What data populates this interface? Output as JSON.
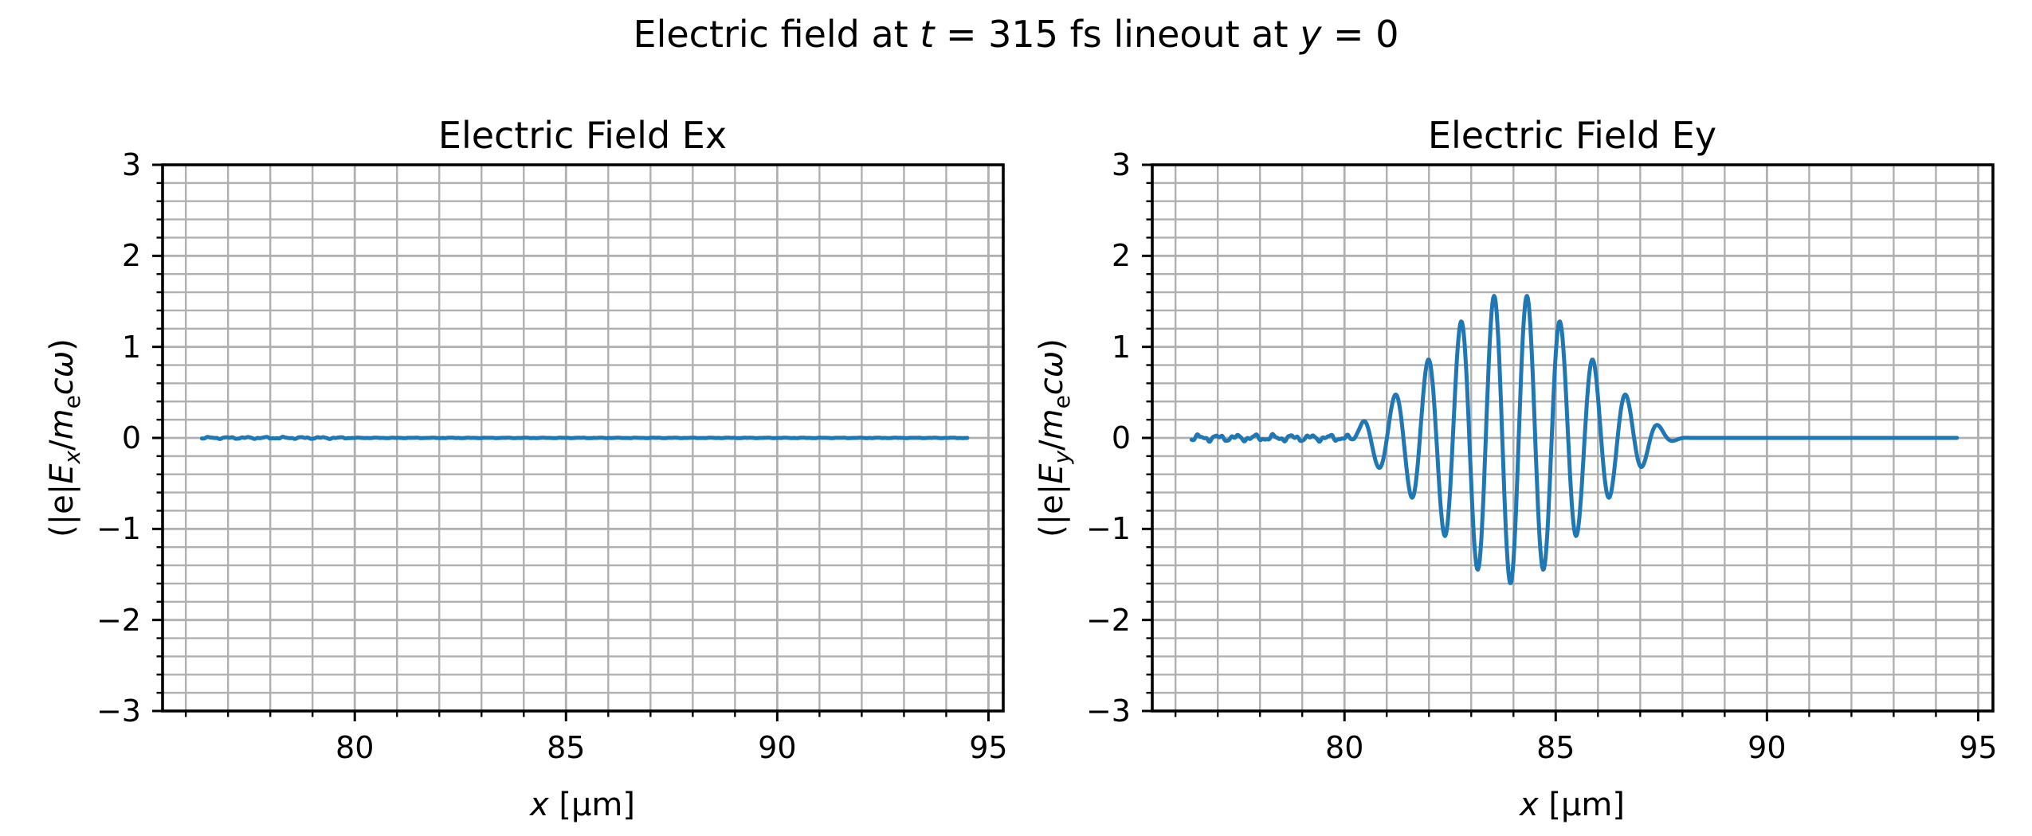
{
  "figure": {
    "suptitle": "Electric field at t = 315 fs lineout at y = 0",
    "suptitle_segments": [
      {
        "t": "Electric field at "
      },
      {
        "t": "t",
        "italic": true
      },
      {
        "t": " = 315 fs lineout at "
      },
      {
        "t": "y",
        "italic": true
      },
      {
        "t": " = 0"
      }
    ],
    "background": "#ffffff",
    "text_color": "#000000",
    "spine_color": "#000000"
  },
  "chart_data": [
    {
      "type": "line",
      "title": "Electric Field Ex",
      "xlabel": "x [μm]",
      "xlabel_segments": [
        {
          "t": "x",
          "italic": true
        },
        {
          "t": " [μm]"
        }
      ],
      "ylabel": "(|e|E_x/m_e cω)",
      "ylabel_segments": [
        {
          "t": "(|e|"
        },
        {
          "t": "E",
          "italic": true
        },
        {
          "t": "x",
          "italic": true,
          "sub": true
        },
        {
          "t": "/"
        },
        {
          "t": "m",
          "italic": true
        },
        {
          "t": "e",
          "sub": true
        },
        {
          "t": "c",
          "italic": true
        },
        {
          "t": "ω",
          "italic": true
        },
        {
          "t": ")"
        }
      ],
      "xlim": [
        75.45,
        95.35
      ],
      "ylim": [
        -3,
        3
      ],
      "xticks": {
        "values": [
          80,
          85,
          90,
          95
        ],
        "labels": [
          "80",
          "85",
          "90",
          "95"
        ]
      },
      "yticks": {
        "values": [
          3,
          2,
          1,
          0,
          -1,
          -2,
          -3
        ],
        "labels": [
          "3",
          "2",
          "1",
          "0",
          "−1",
          "−2",
          "−3"
        ]
      },
      "minor_x_step": 1,
      "minor_y_step": 0.2,
      "grid": "both",
      "grid_color": "#b0b0b0",
      "line_color": "#1f77b4",
      "data_x_range": [
        76.38,
        94.5
      ],
      "series_model": {
        "type": "flat_with_noise",
        "baseline": 0,
        "noise_amp": 0.013,
        "noise_region": [
          76.38,
          79.8
        ],
        "residual_noise_amp": 0.003
      },
      "summary": "Ex ≈ 0 across the entire lineout (only tiny numerical noise near x ≈ 76.5–80 μm)"
    },
    {
      "type": "line",
      "title": "Electric Field Ey",
      "xlabel": "x [μm]",
      "xlabel_segments": [
        {
          "t": "x",
          "italic": true
        },
        {
          "t": " [μm]"
        }
      ],
      "ylabel": "(|e|E_y/m_e cω)",
      "ylabel_segments": [
        {
          "t": "(|e|"
        },
        {
          "t": "E",
          "italic": true
        },
        {
          "t": "y",
          "italic": true,
          "sub": true
        },
        {
          "t": "/"
        },
        {
          "t": "m",
          "italic": true
        },
        {
          "t": "e",
          "sub": true
        },
        {
          "t": "c",
          "italic": true
        },
        {
          "t": "ω",
          "italic": true
        },
        {
          "t": ")"
        }
      ],
      "xlim": [
        75.45,
        95.35
      ],
      "ylim": [
        -3,
        3
      ],
      "xticks": {
        "values": [
          80,
          85,
          90,
          95
        ],
        "labels": [
          "80",
          "85",
          "90",
          "95"
        ]
      },
      "yticks": {
        "values": [
          3,
          2,
          1,
          0,
          -1,
          -2,
          -3
        ],
        "labels": [
          "3",
          "2",
          "1",
          "0",
          "−1",
          "−2",
          "−3"
        ]
      },
      "minor_x_step": 1,
      "minor_y_step": 0.2,
      "grid": "both",
      "grid_color": "#b0b0b0",
      "line_color": "#1f77b4",
      "data_x_range": [
        76.38,
        94.5
      ],
      "series_model": {
        "type": "gaussian_wave_packet",
        "center": 83.93,
        "amplitude": 1.6,
        "sigma": 1.75,
        "wavelength": 0.78,
        "rise": [
          80.0,
          80.6
        ],
        "fall": [
          86.9,
          88.2
        ],
        "noise_amp": 0.045,
        "noise_fade": [
          80.0,
          80.5
        ]
      },
      "extrema": [
        [
          80.44,
          0.18
        ],
        [
          80.78,
          -0.29
        ],
        [
          81.22,
          0.5
        ],
        [
          81.57,
          -0.7
        ],
        [
          82.0,
          0.92
        ],
        [
          82.35,
          -1.12
        ],
        [
          82.76,
          1.3
        ],
        [
          83.13,
          -1.46
        ],
        [
          83.54,
          1.55
        ],
        [
          83.95,
          -1.59
        ],
        [
          84.31,
          1.55
        ],
        [
          84.73,
          -1.45
        ],
        [
          85.1,
          1.3
        ],
        [
          85.51,
          -1.11
        ],
        [
          85.88,
          0.93
        ],
        [
          86.28,
          -0.71
        ],
        [
          86.65,
          0.52
        ],
        [
          87.07,
          -0.33
        ],
        [
          87.41,
          0.17
        ],
        [
          87.78,
          -0.09
        ]
      ],
      "summary": "Gaussian laser wave packet centered near x ≈ 84 μm, peak amplitude ≈ ±1.6, wavelength ≈ 0.78 μm, extending from ≈ 80 to 88 μm; small noise before 80 μm, flat 0 after 88 μm"
    }
  ]
}
